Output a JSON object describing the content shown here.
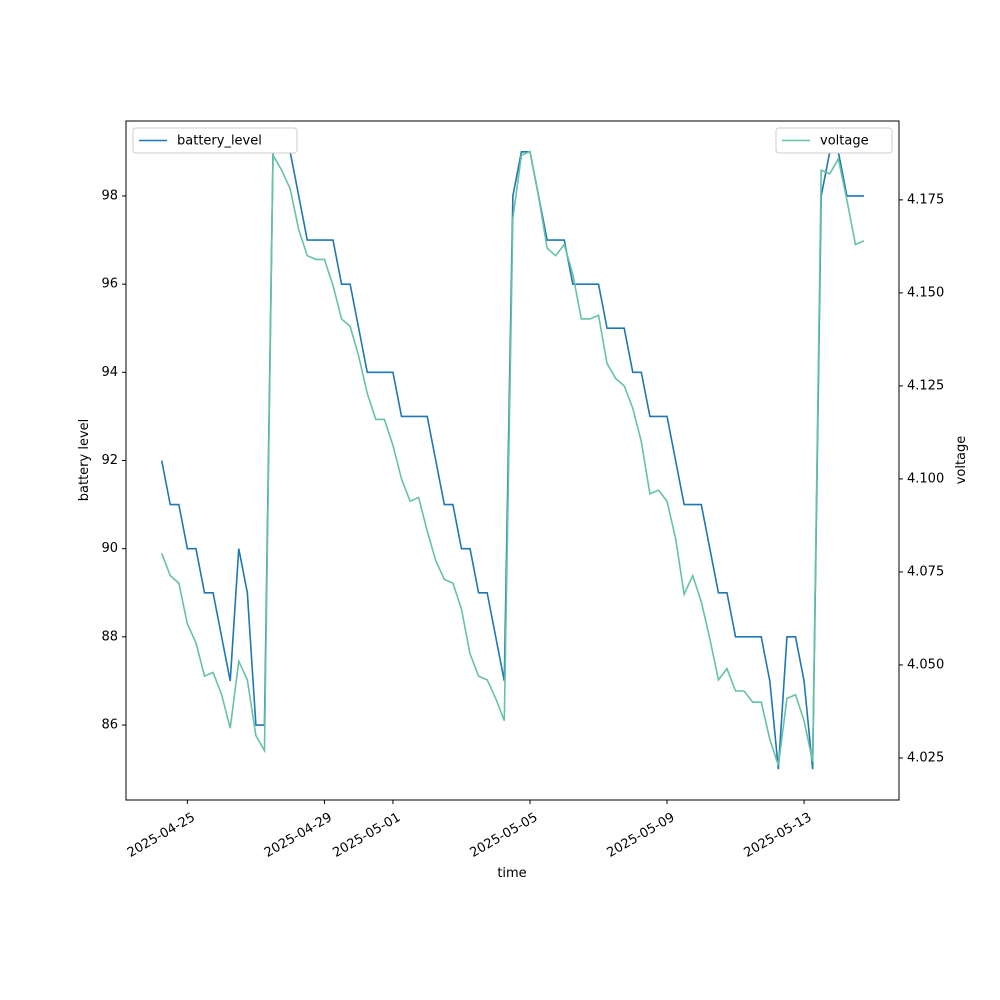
{
  "chart_data": {
    "type": "line",
    "x": [
      "2025-04-24T06:00",
      "2025-04-24T12:00",
      "2025-04-24T18:00",
      "2025-04-25T00:00",
      "2025-04-25T06:00",
      "2025-04-25T12:00",
      "2025-04-25T18:00",
      "2025-04-26T00:00",
      "2025-04-26T06:00",
      "2025-04-26T12:00",
      "2025-04-26T18:00",
      "2025-04-27T00:00",
      "2025-04-27T06:00",
      "2025-04-27T12:00",
      "2025-04-27T18:00",
      "2025-04-28T00:00",
      "2025-04-28T06:00",
      "2025-04-28T12:00",
      "2025-04-28T18:00",
      "2025-04-29T00:00",
      "2025-04-29T06:00",
      "2025-04-29T12:00",
      "2025-04-29T18:00",
      "2025-04-30T00:00",
      "2025-04-30T06:00",
      "2025-04-30T12:00",
      "2025-04-30T18:00",
      "2025-05-01T00:00",
      "2025-05-01T06:00",
      "2025-05-01T12:00",
      "2025-05-01T18:00",
      "2025-05-02T00:00",
      "2025-05-02T06:00",
      "2025-05-02T12:00",
      "2025-05-02T18:00",
      "2025-05-03T00:00",
      "2025-05-03T06:00",
      "2025-05-03T12:00",
      "2025-05-03T18:00",
      "2025-05-04T00:00",
      "2025-05-04T06:00",
      "2025-05-04T12:00",
      "2025-05-04T18:00",
      "2025-05-05T00:00",
      "2025-05-05T06:00",
      "2025-05-05T12:00",
      "2025-05-05T18:00",
      "2025-05-06T00:00",
      "2025-05-06T06:00",
      "2025-05-06T12:00",
      "2025-05-06T18:00",
      "2025-05-07T00:00",
      "2025-05-07T06:00",
      "2025-05-07T12:00",
      "2025-05-07T18:00",
      "2025-05-08T00:00",
      "2025-05-08T06:00",
      "2025-05-08T12:00",
      "2025-05-08T18:00",
      "2025-05-09T00:00",
      "2025-05-09T06:00",
      "2025-05-09T12:00",
      "2025-05-09T18:00",
      "2025-05-10T00:00",
      "2025-05-10T06:00",
      "2025-05-10T12:00",
      "2025-05-10T18:00",
      "2025-05-11T00:00",
      "2025-05-11T06:00",
      "2025-05-11T12:00",
      "2025-05-11T18:00",
      "2025-05-12T00:00",
      "2025-05-12T06:00",
      "2025-05-12T12:00",
      "2025-05-12T18:00",
      "2025-05-13T00:00",
      "2025-05-13T06:00",
      "2025-05-13T12:00",
      "2025-05-13T18:00",
      "2025-05-14T00:00",
      "2025-05-14T06:00",
      "2025-05-14T12:00",
      "2025-05-14T18:00"
    ],
    "series": [
      {
        "name": "battery_level",
        "color": "#1f77b4",
        "legend": "upper left",
        "values": [
          92,
          91,
          91,
          90,
          90,
          89,
          89,
          88,
          87,
          90,
          89,
          86,
          86,
          99,
          99,
          99,
          98,
          97,
          97,
          97,
          97,
          96,
          96,
          95,
          94,
          94,
          94,
          94,
          93,
          93,
          93,
          93,
          92,
          91,
          91,
          90,
          90,
          89,
          89,
          88,
          87,
          98,
          99,
          99,
          98,
          97,
          97,
          97,
          96,
          96,
          96,
          96,
          95,
          95,
          95,
          94,
          94,
          93,
          93,
          93,
          92,
          91,
          91,
          91,
          90,
          89,
          89,
          88,
          88,
          88,
          88,
          87,
          85,
          88,
          88,
          87,
          85,
          98,
          99,
          99,
          98,
          98,
          98
        ]
      },
      {
        "name": "voltage",
        "color": "#66c2a5",
        "axis": "y2",
        "legend": "upper right",
        "values": [
          4.08,
          4.074,
          4.072,
          4.061,
          4.056,
          4.047,
          4.048,
          4.042,
          4.033,
          4.051,
          4.046,
          4.031,
          4.027,
          4.187,
          4.183,
          4.178,
          4.167,
          4.16,
          4.159,
          4.159,
          4.152,
          4.143,
          4.141,
          4.133,
          4.123,
          4.116,
          4.116,
          4.109,
          4.1,
          4.094,
          4.095,
          4.086,
          4.078,
          4.073,
          4.072,
          4.065,
          4.053,
          4.047,
          4.046,
          4.041,
          4.035,
          4.17,
          4.187,
          4.188,
          4.176,
          4.162,
          4.16,
          4.163,
          4.155,
          4.143,
          4.143,
          4.144,
          4.131,
          4.127,
          4.125,
          4.119,
          4.11,
          4.096,
          4.097,
          4.094,
          4.084,
          4.069,
          4.074,
          4.067,
          4.057,
          4.046,
          4.049,
          4.043,
          4.043,
          4.04,
          4.04,
          4.03,
          4.023,
          4.041,
          4.042,
          4.035,
          4.024,
          4.183,
          4.182,
          4.186,
          4.175,
          4.163,
          4.164
        ]
      }
    ],
    "x_label": "time",
    "y_label": "battery level",
    "y2_label": "voltage",
    "xlim": [
      "2025-04-23T05:00",
      "2025-05-15T18:30"
    ],
    "xticks": [
      "2025-04-25",
      "2025-04-29",
      "2025-05-01",
      "2025-05-05",
      "2025-05-09",
      "2025-05-13"
    ],
    "ylim": [
      84.3,
      99.7
    ],
    "yticks": [
      86,
      88,
      90,
      92,
      94,
      96,
      98
    ],
    "y2lim": [
      4.0137,
      4.1962
    ],
    "y2ticks": [
      4.025,
      {
        "value": 4.05,
        "label": "4.050"
      },
      4.075,
      {
        "value": 4.1,
        "label": "4.100"
      },
      4.125,
      {
        "value": 4.15,
        "label": "4.150"
      },
      4.175
    ],
    "grid": false
  }
}
